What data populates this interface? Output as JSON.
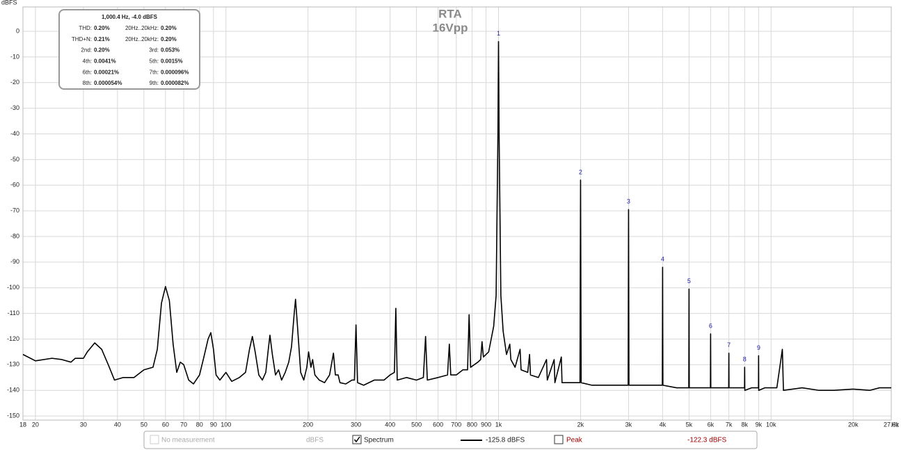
{
  "chart_data": {
    "type": "line",
    "title": "RTA",
    "subtitle": "16Vpp",
    "y_label": "dBFS",
    "x_label": "Hz",
    "log_x": true,
    "grid": true,
    "xlim": [
      18,
      27600
    ],
    "ylim": [
      -151.6,
      9.5
    ],
    "yticks": [
      0,
      -10,
      -20,
      -30,
      -40,
      -50,
      -60,
      -70,
      -80,
      -90,
      -100,
      -110,
      -120,
      -130,
      -140,
      -150
    ],
    "xticks": [
      18,
      20,
      30,
      40,
      50,
      60,
      70,
      80,
      90,
      100,
      200,
      300,
      400,
      500,
      600,
      700,
      800,
      900,
      {
        "value": 1000,
        "label": "1k"
      },
      {
        "value": 2000,
        "label": "2k"
      },
      {
        "value": 3000,
        "label": "3k"
      },
      {
        "value": 4000,
        "label": "4k"
      },
      {
        "value": 5000,
        "label": "5k"
      },
      {
        "value": 6000,
        "label": "6k"
      },
      {
        "value": 7000,
        "label": "7k"
      },
      {
        "value": 8000,
        "label": "8k"
      },
      {
        "value": 9000,
        "label": "9k"
      },
      {
        "value": 10000,
        "label": "10k"
      },
      {
        "value": 20000,
        "label": "20k"
      },
      {
        "value": 27600,
        "label": "27.6k"
      }
    ],
    "x": [
      18,
      20,
      23,
      25,
      27,
      28,
      30,
      31,
      33,
      35,
      37,
      39,
      42,
      46,
      50,
      54,
      56,
      58,
      60,
      62,
      64,
      66,
      68,
      70,
      73,
      76,
      80,
      83,
      86,
      88,
      90,
      92,
      95,
      100,
      105,
      112,
      118,
      122,
      125,
      128,
      132,
      136,
      140,
      143,
      145,
      148,
      152,
      156,
      160,
      165,
      170,
      174,
      178,
      180,
      183,
      188,
      193,
      198,
      201,
      205,
      208,
      212,
      220,
      230,
      240,
      248,
      252,
      258,
      262,
      275,
      290,
      296,
      300,
      304,
      320,
      350,
      380,
      400,
      415,
      420,
      425,
      460,
      500,
      530,
      540,
      548,
      600,
      650,
      660,
      668,
      700,
      740,
      770,
      780,
      790,
      840,
      860,
      870,
      880,
      920,
      940,
      960,
      980,
      995,
      1000,
      1005,
      1020,
      1040,
      1070,
      1100,
      1110,
      1150,
      1200,
      1210,
      1280,
      1300,
      1310,
      1400,
      1500,
      1510,
      1600,
      1610,
      1700,
      1710,
      1800,
      1900,
      1990,
      2000,
      2010,
      2200,
      2500,
      2800,
      2990,
      3000,
      3010,
      3500,
      3990,
      4000,
      4010,
      4500,
      4990,
      5000,
      5010,
      5500,
      5990,
      6000,
      6010,
      6500,
      6990,
      7000,
      7010,
      7500,
      7990,
      8000,
      8010,
      8500,
      8990,
      9000,
      9010,
      9500,
      10500,
      11000,
      11100,
      13000,
      15000,
      17000,
      20000,
      23000,
      25000,
      27600
    ],
    "series": [
      {
        "name": "Spectrum",
        "color": "#000000",
        "values": [
          -126,
          -128.5,
          -127.5,
          -128,
          -129,
          -127.5,
          -127.5,
          -125,
          -121.5,
          -124,
          -130,
          -136,
          -135,
          -135,
          -132,
          -131,
          -124,
          -106,
          -99.5,
          -105,
          -122,
          -133,
          -129,
          -130,
          -136,
          -137.5,
          -134,
          -127,
          -120,
          -117.5,
          -124,
          -134,
          -136,
          -133,
          -136.5,
          -135,
          -133,
          -124,
          -119,
          -125,
          -134,
          -136,
          -133,
          -124,
          -118.5,
          -126,
          -134,
          -132,
          -136,
          -133,
          -129,
          -123,
          -110,
          -104.5,
          -115,
          -133,
          -136,
          -131,
          -125,
          -131,
          -128,
          -134,
          -136,
          -137,
          -134,
          -125.5,
          -134,
          -134,
          -137,
          -137.5,
          -136,
          -136,
          -114.5,
          -137,
          -138,
          -136,
          -136,
          -134,
          -133,
          -108,
          -136,
          -135,
          -136,
          -135,
          -119,
          -136,
          -135,
          -134,
          -122,
          -134,
          -134,
          -132,
          -132,
          -110.5,
          -131,
          -129,
          -128,
          -121,
          -127,
          -125,
          -120,
          -115,
          -103,
          -40,
          -4,
          -40,
          -103,
          -117,
          -126,
          -122,
          -128,
          -131,
          -124,
          -132,
          -133,
          -126,
          -134,
          -135,
          -128,
          -136,
          -128,
          -137,
          -127,
          -137,
          -137,
          -137,
          -137,
          -58,
          -137,
          -138,
          -138,
          -138,
          -138,
          -69.5,
          -138,
          -138,
          -138,
          -92,
          -138,
          -139,
          -139,
          -100.5,
          -139,
          -139,
          -139,
          -118,
          -139,
          -139,
          -139,
          -125.5,
          -139,
          -139,
          -139,
          -131,
          -140,
          -139,
          -139,
          -126.5,
          -140,
          -139,
          -139,
          -124,
          -140,
          -139,
          -140,
          -140,
          -139.5,
          -140,
          -139,
          -139
        ]
      }
    ],
    "harmonics": [
      {
        "label": "1",
        "freq": 1000,
        "level": -4
      },
      {
        "label": "2",
        "freq": 2000,
        "level": -58
      },
      {
        "label": "3",
        "freq": 3000,
        "level": -69.5
      },
      {
        "label": "4",
        "freq": 4000,
        "level": -92
      },
      {
        "label": "5",
        "freq": 5000,
        "level": -100.5
      },
      {
        "label": "6",
        "freq": 6000,
        "level": -118
      },
      {
        "label": "7",
        "freq": 7000,
        "level": -125.5
      },
      {
        "label": "8",
        "freq": 8000,
        "level": -131
      },
      {
        "label": "9",
        "freq": 9000,
        "level": -126.5
      }
    ],
    "summary": {
      "title": "1,000.4 Hz, -4.0 dBFS",
      "rows": [
        [
          [
            "THD:",
            "0.20%"
          ],
          [
            "20Hz..20kHz:",
            "0.20%"
          ]
        ],
        [
          [
            "THD+N:",
            "0.21%"
          ],
          [
            "20Hz..20kHz:",
            "0.20%"
          ]
        ],
        [
          [
            "2nd:",
            "0.20%"
          ],
          [
            "3rd:",
            "0.053%"
          ]
        ],
        [
          [
            "4th:",
            "0.0041%"
          ],
          [
            "5th:",
            "0.0015%"
          ]
        ],
        [
          [
            "6th:",
            "0.00021%"
          ],
          [
            "7th:",
            "0.000096%"
          ]
        ],
        [
          [
            "8th:",
            "0.000054%"
          ],
          [
            "9th:",
            "0.000082%"
          ]
        ]
      ]
    },
    "legend": {
      "no_measurement": "No measurement",
      "unit": "dBFS",
      "spectrum_value": "-125.8 dBFS",
      "peak": "Peak",
      "peak_value": "-122.3 dBFS",
      "peak_color": "#a00000"
    }
  }
}
